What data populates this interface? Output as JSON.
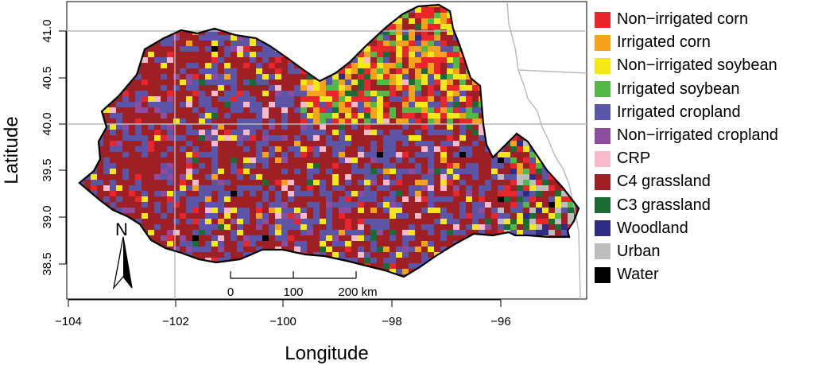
{
  "axes": {
    "xlabel": "Longitude",
    "ylabel": "Latitude",
    "x_ticks": [
      "−104",
      "−102",
      "−100",
      "−98",
      "−96"
    ],
    "y_ticks": [
      "38.5",
      "39.0",
      "39.5",
      "40.0",
      "40.5",
      "41.0"
    ]
  },
  "north_arrow": {
    "label": "N"
  },
  "scale_bar": {
    "labels": [
      "0",
      "100",
      "200 km"
    ]
  },
  "legend": [
    {
      "label": "Non−irrigated corn",
      "color": "#e8262b"
    },
    {
      "label": "Irrigated corn",
      "color": "#f7a21b"
    },
    {
      "label": "Non−irrigated soybean",
      "color": "#f5e81a"
    },
    {
      "label": "Irrigated soybean",
      "color": "#52b848"
    },
    {
      "label": "Irrigated cropland",
      "color": "#5b55a8"
    },
    {
      "label": "Non−irrigated cropland",
      "color": "#8e4c9e"
    },
    {
      "label": "CRP",
      "color": "#f8b9cb"
    },
    {
      "label": "C4 grassland",
      "color": "#9e1f24"
    },
    {
      "label": "C3 grassland",
      "color": "#1b6b36"
    },
    {
      "label": "Woodland",
      "color": "#2e2c85"
    },
    {
      "label": "Urban",
      "color": "#bdbdbd"
    },
    {
      "label": "Water",
      "color": "#000000"
    }
  ]
}
